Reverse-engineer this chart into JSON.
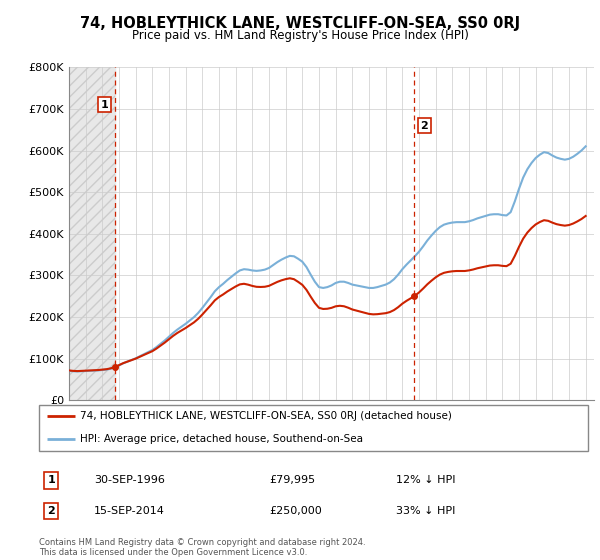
{
  "title": "74, HOBLEYTHICK LANE, WESTCLIFF-ON-SEA, SS0 0RJ",
  "subtitle": "Price paid vs. HM Land Registry's House Price Index (HPI)",
  "ylim": [
    0,
    800000
  ],
  "yticks": [
    0,
    100000,
    200000,
    300000,
    400000,
    500000,
    600000,
    700000,
    800000
  ],
  "ytick_labels": [
    "£0",
    "£100K",
    "£200K",
    "£300K",
    "£400K",
    "£500K",
    "£600K",
    "£700K",
    "£800K"
  ],
  "sale1_year": 1996.75,
  "sale1_price": 79995,
  "sale1_date": "30-SEP-1996",
  "sale1_amount": "£79,995",
  "sale1_hpi": "12% ↓ HPI",
  "sale2_year": 2014.71,
  "sale2_price": 250000,
  "sale2_date": "15-SEP-2014",
  "sale2_amount": "£250,000",
  "sale2_hpi": "33% ↓ HPI",
  "hpi_color": "#7ab0d8",
  "price_color": "#cc2200",
  "vline_color": "#cc2200",
  "legend_label_price": "74, HOBLEYTHICK LANE, WESTCLIFF-ON-SEA, SS0 0RJ (detached house)",
  "legend_label_hpi": "HPI: Average price, detached house, Southend-on-Sea",
  "footer": "Contains HM Land Registry data © Crown copyright and database right 2024.\nThis data is licensed under the Open Government Licence v3.0.",
  "grid_color": "#cccccc",
  "hpi_data_x": [
    1994.0,
    1994.25,
    1994.5,
    1994.75,
    1995.0,
    1995.25,
    1995.5,
    1995.75,
    1996.0,
    1996.25,
    1996.5,
    1996.75,
    1997.0,
    1997.25,
    1997.5,
    1997.75,
    1998.0,
    1998.25,
    1998.5,
    1998.75,
    1999.0,
    1999.25,
    1999.5,
    1999.75,
    2000.0,
    2000.25,
    2000.5,
    2000.75,
    2001.0,
    2001.25,
    2001.5,
    2001.75,
    2002.0,
    2002.25,
    2002.5,
    2002.75,
    2003.0,
    2003.25,
    2003.5,
    2003.75,
    2004.0,
    2004.25,
    2004.5,
    2004.75,
    2005.0,
    2005.25,
    2005.5,
    2005.75,
    2006.0,
    2006.25,
    2006.5,
    2006.75,
    2007.0,
    2007.25,
    2007.5,
    2007.75,
    2008.0,
    2008.25,
    2008.5,
    2008.75,
    2009.0,
    2009.25,
    2009.5,
    2009.75,
    2010.0,
    2010.25,
    2010.5,
    2010.75,
    2011.0,
    2011.25,
    2011.5,
    2011.75,
    2012.0,
    2012.25,
    2012.5,
    2012.75,
    2013.0,
    2013.25,
    2013.5,
    2013.75,
    2014.0,
    2014.25,
    2014.5,
    2014.75,
    2015.0,
    2015.25,
    2015.5,
    2015.75,
    2016.0,
    2016.25,
    2016.5,
    2016.75,
    2017.0,
    2017.25,
    2017.5,
    2017.75,
    2018.0,
    2018.25,
    2018.5,
    2018.75,
    2019.0,
    2019.25,
    2019.5,
    2019.75,
    2020.0,
    2020.25,
    2020.5,
    2020.75,
    2021.0,
    2021.25,
    2021.5,
    2021.75,
    2022.0,
    2022.25,
    2022.5,
    2022.75,
    2023.0,
    2023.25,
    2023.5,
    2023.75,
    2024.0,
    2024.25,
    2024.5,
    2024.75,
    2025.0
  ],
  "hpi_data_y": [
    71000,
    70000,
    69500,
    70000,
    70500,
    71000,
    71500,
    72000,
    73000,
    74000,
    76000,
    79000,
    84000,
    89000,
    93000,
    97000,
    101000,
    106000,
    111000,
    116000,
    121000,
    128000,
    136000,
    144000,
    153000,
    162000,
    170000,
    177000,
    184000,
    192000,
    200000,
    210000,
    222000,
    235000,
    248000,
    262000,
    272000,
    280000,
    289000,
    297000,
    305000,
    312000,
    315000,
    314000,
    312000,
    311000,
    312000,
    314000,
    318000,
    325000,
    332000,
    338000,
    343000,
    347000,
    346000,
    340000,
    333000,
    320000,
    302000,
    285000,
    272000,
    270000,
    272000,
    276000,
    282000,
    285000,
    285000,
    282000,
    278000,
    276000,
    274000,
    272000,
    270000,
    270000,
    272000,
    275000,
    278000,
    283000,
    291000,
    302000,
    315000,
    326000,
    336000,
    346000,
    357000,
    370000,
    384000,
    396000,
    407000,
    416000,
    422000,
    425000,
    427000,
    428000,
    428000,
    428000,
    430000,
    433000,
    437000,
    440000,
    443000,
    446000,
    447000,
    447000,
    445000,
    444000,
    452000,
    478000,
    508000,
    535000,
    555000,
    570000,
    582000,
    590000,
    596000,
    594000,
    588000,
    583000,
    580000,
    578000,
    580000,
    585000,
    592000,
    600000,
    610000
  ]
}
